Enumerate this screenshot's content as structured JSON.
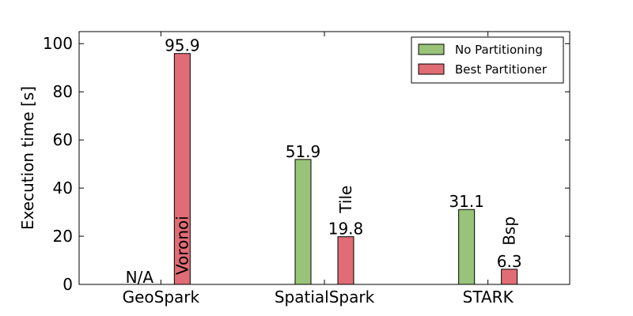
{
  "chart_data": {
    "type": "bar",
    "title": "",
    "xlabel": "",
    "ylabel": "Execution time [s]",
    "ylim": [
      0,
      105
    ],
    "yticks": [
      0,
      20,
      40,
      60,
      80,
      100
    ],
    "categories": [
      "GeoSpark",
      "SpatialSpark",
      "STARK"
    ],
    "series": [
      {
        "name": "No Partitioning",
        "color": "#98c378",
        "values": [
          null,
          51.9,
          31.1
        ],
        "labels": [
          "N/A",
          "51.9",
          "31.1"
        ]
      },
      {
        "name": "Best Partitioner",
        "color": "#e06c75",
        "values": [
          95.9,
          19.8,
          6.3
        ],
        "labels": [
          "95.9",
          "19.8",
          "6.3"
        ],
        "partitioners": [
          "Voronoi",
          "Tile",
          "Bsp"
        ]
      }
    ],
    "legend_position": "top-right",
    "grid": false
  }
}
